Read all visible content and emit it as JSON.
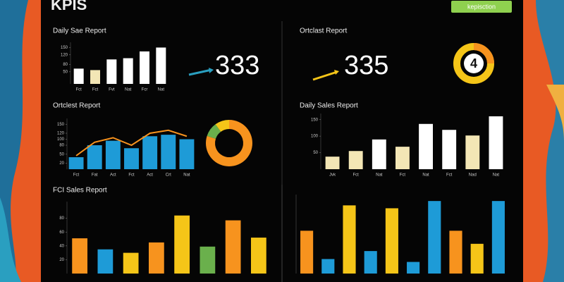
{
  "title": "KPIS",
  "button": "kepisction",
  "section": "Ortclast Report",
  "kpis": [
    {
      "value": 333
    },
    {
      "value": 335
    },
    {
      "value": 4
    }
  ],
  "chart_data": [
    {
      "type": "bar",
      "title": "Daily Sae Report",
      "categories": [
        "Fct",
        "Fct",
        "Fvt",
        "Nat",
        "Fcr",
        "Nat"
      ],
      "values": [
        63,
        57,
        101,
        106,
        134,
        150
      ],
      "colors": [
        "#ffffff",
        "#f3e6b5",
        "#ffffff",
        "#ffffff",
        "#ffffff",
        "#ffffff"
      ],
      "ylim": [
        0,
        160
      ],
      "yticks": [
        50,
        80,
        120,
        150
      ]
    },
    {
      "type": "combo",
      "title": "Ortclest Report",
      "categories": [
        "Fct",
        "Fat",
        "Act",
        "Fct",
        "Act",
        "Crt",
        "Nat"
      ],
      "series": [
        {
          "style": "bar",
          "color": "#1e9bd7",
          "values": [
            40,
            80,
            95,
            70,
            110,
            115,
            100
          ]
        },
        {
          "style": "line",
          "color": "#f7931e",
          "values": [
            45,
            90,
            105,
            80,
            120,
            130,
            110
          ]
        }
      ],
      "ylim": [
        0,
        160
      ],
      "yticks": [
        20,
        50,
        80,
        100,
        120,
        150
      ]
    },
    {
      "type": "pie",
      "donut": true,
      "values": [
        80,
        10,
        10
      ],
      "colors": [
        "#f7931e",
        "#6ab04c",
        "#f5c518"
      ]
    },
    {
      "type": "bar",
      "title": "Daily Sales Report",
      "categories": [
        "Jvk",
        "Fct",
        "Nat",
        "Fct",
        "Nat",
        "Fct",
        "Nad",
        "Nat"
      ],
      "values": [
        38,
        55,
        90,
        68,
        137,
        119,
        102,
        160
      ],
      "colors": [
        "#f3e6b5",
        "#f3e6b5",
        "#ffffff",
        "#f3e6b5",
        "#ffffff",
        "#ffffff",
        "#f3e6b5",
        "#ffffff"
      ],
      "ylim": [
        0,
        160
      ],
      "yticks": [
        50,
        100,
        150
      ]
    },
    {
      "type": "bar",
      "title": "FCI Sales Report",
      "values": [
        51,
        35,
        30,
        45,
        84,
        39,
        77,
        52
      ],
      "colors": [
        "#f7931e",
        "#1e9bd7",
        "#f5c518",
        "#f7931e",
        "#f5c518",
        "#6ab04c",
        "#f7931e",
        "#f5c518"
      ],
      "ylim": [
        0,
        100
      ],
      "yticks": [
        20,
        40,
        60,
        80
      ]
    },
    {
      "type": "bar",
      "values": [
        59,
        20,
        94,
        31,
        90,
        16,
        100,
        59,
        41,
        100
      ],
      "colors": [
        "#f7931e",
        "#1e9bd7",
        "#f5c518",
        "#1e9bd7",
        "#f5c518",
        "#1e9bd7",
        "#1e9bd7",
        "#f7931e",
        "#f5c518",
        "#1e9bd7"
      ],
      "ylim": [
        0,
        105
      ]
    }
  ]
}
